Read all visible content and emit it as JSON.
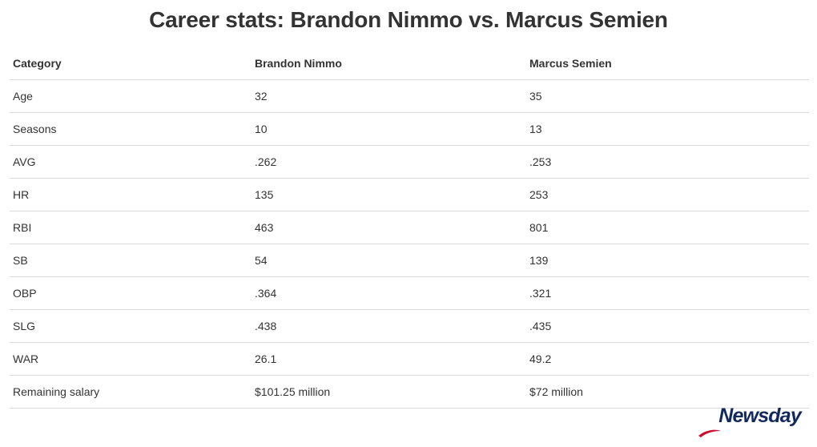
{
  "title": "Career stats: Brandon Nimmo vs. Marcus Semien",
  "chart_data": {
    "type": "table",
    "title": "Career stats: Brandon Nimmo vs. Marcus Semien",
    "columns": [
      "Category",
      "Brandon Nimmo",
      "Marcus Semien"
    ],
    "rows": [
      [
        "Age",
        "32",
        "35"
      ],
      [
        "Seasons",
        "10",
        "13"
      ],
      [
        "AVG",
        ".262",
        ".253"
      ],
      [
        "HR",
        "135",
        "253"
      ],
      [
        "RBI",
        "463",
        "801"
      ],
      [
        "SB",
        "54",
        "139"
      ],
      [
        "OBP",
        ".364",
        ".321"
      ],
      [
        "SLG",
        ".438",
        ".435"
      ],
      [
        "WAR",
        "26.1",
        "49.2"
      ],
      [
        "Remaining salary",
        "$101.25 million",
        "$72 million"
      ]
    ]
  },
  "logo": {
    "text": "Newsday",
    "color": "#13295e",
    "accent": "#c8102e"
  }
}
